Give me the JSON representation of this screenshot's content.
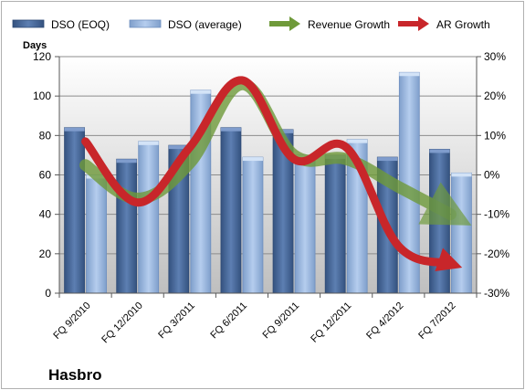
{
  "chart_data": {
    "type": "bar",
    "company": "Hasbro",
    "ylabel": "Days",
    "categories": [
      "FQ 9/2010",
      "FQ 12/2010",
      "FQ 3/2011",
      "FQ 6/2011",
      "FQ 9/2011",
      "FQ 12/2011",
      "FQ 4/2012",
      "FQ 7/2012"
    ],
    "ylim": [
      0,
      120
    ],
    "yticks": [
      0,
      20,
      40,
      60,
      80,
      100,
      120
    ],
    "y2lim": [
      -30,
      30
    ],
    "y2ticks": [
      "-30%",
      "-20%",
      "-10%",
      "0%",
      "10%",
      "20%",
      "30%"
    ],
    "legend_position": "top",
    "series": [
      {
        "name": "DSO (EOQ)",
        "type": "bar",
        "color": "#4f6fa0",
        "values": [
          84,
          68,
          75,
          84,
          83,
          70,
          69,
          73
        ]
      },
      {
        "name": "DSO (average)",
        "type": "bar",
        "color": "#9ebde4",
        "values": [
          60,
          77,
          103,
          69,
          70,
          78,
          112,
          61
        ]
      },
      {
        "name": "Revenue Growth",
        "type": "arrow-line",
        "axis": "secondary",
        "color": "#6f9a3a",
        "values": [
          2.5,
          -6,
          3,
          23,
          5,
          4,
          -3,
          -10
        ]
      },
      {
        "name": "AR Growth",
        "type": "arrow-line",
        "axis": "secondary",
        "color": "#c8262a",
        "values": [
          8.5,
          -7,
          7,
          24,
          4,
          7,
          -18,
          -22.5
        ]
      }
    ]
  }
}
